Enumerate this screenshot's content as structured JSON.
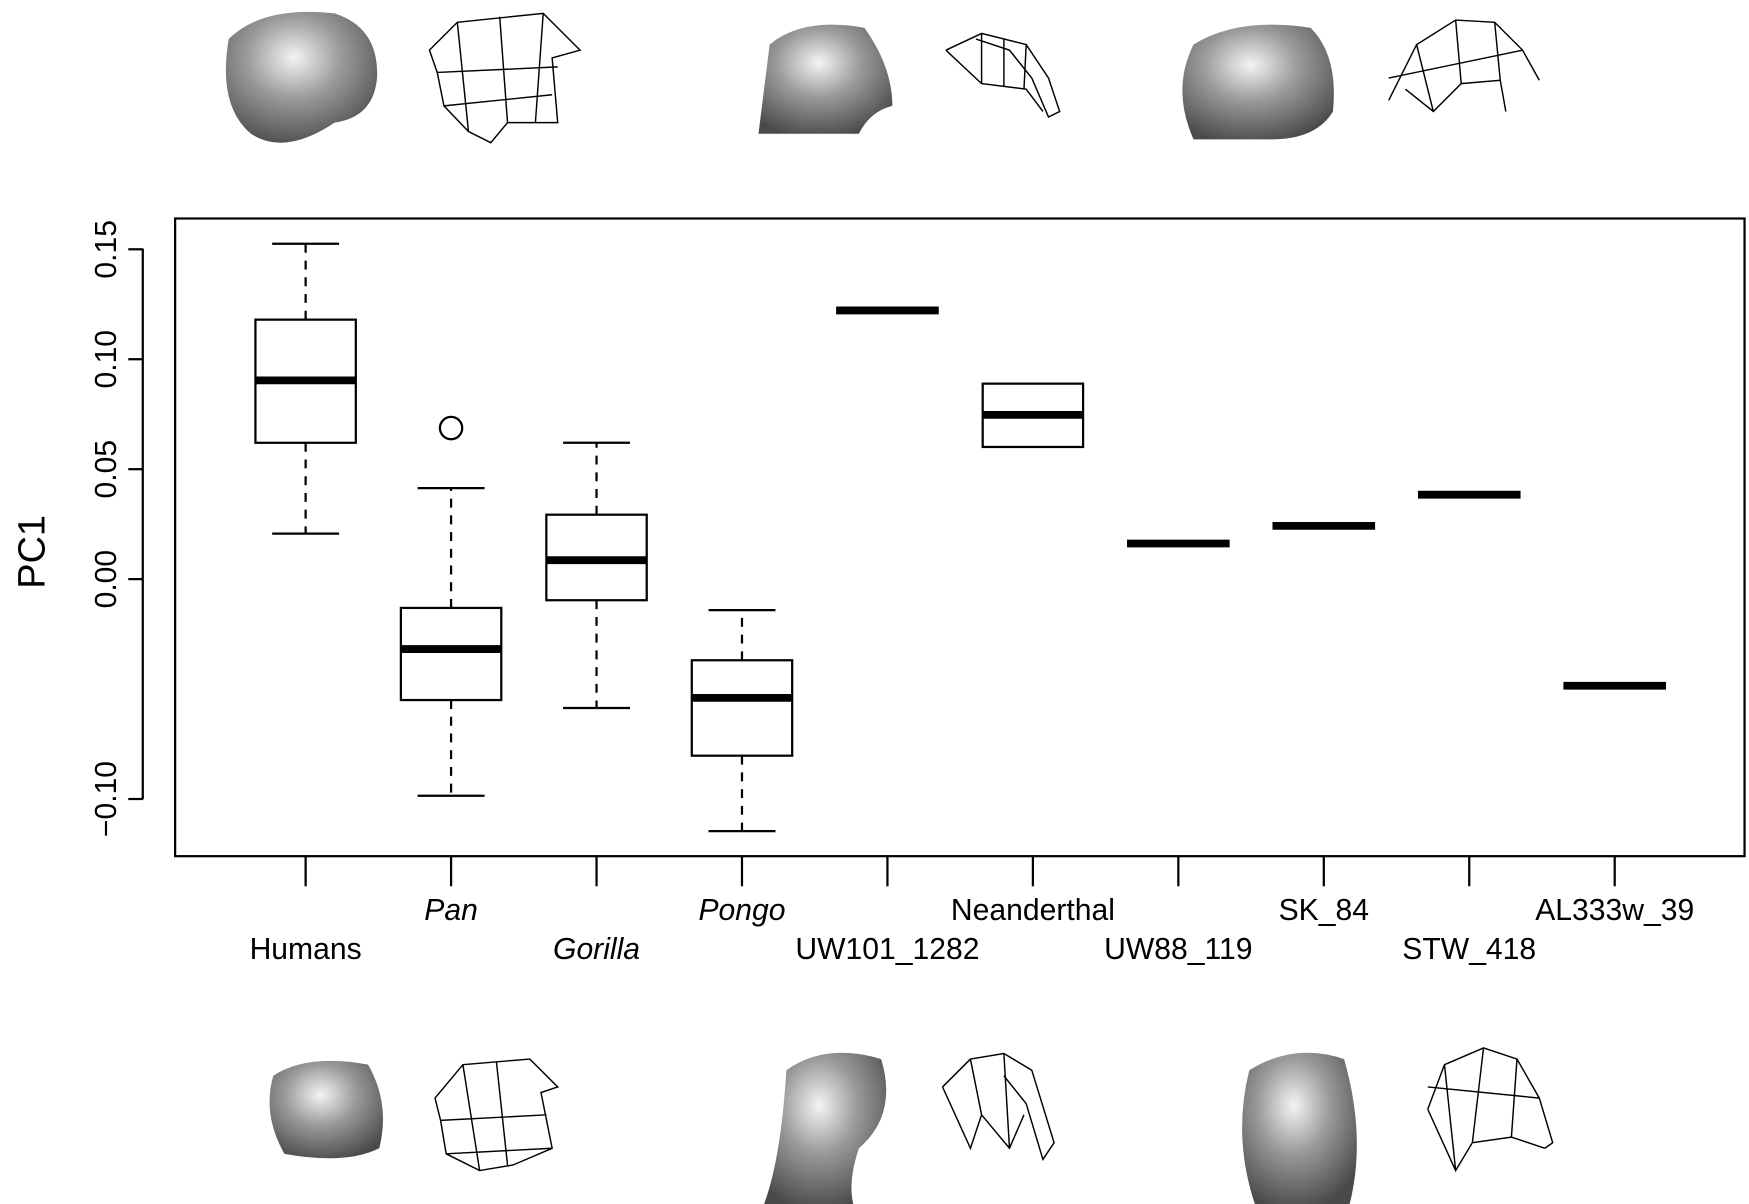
{
  "chart_data": {
    "type": "box",
    "y_label": "PC1",
    "categories": [
      "Humans",
      "Pan",
      "Gorilla",
      "Pongo",
      "UW101_1282",
      "Neanderthal",
      "UW88_119",
      "SK_84",
      "STW_418",
      "AL333w_39"
    ],
    "italic": [
      false,
      true,
      true,
      true,
      false,
      false,
      false,
      false,
      false,
      false
    ],
    "boxes": [
      {
        "whisker_low": 0.0207,
        "q1": 0.062,
        "median": 0.0904,
        "q3": 0.118,
        "whisker_high": 0.1525
      },
      {
        "whisker_low": -0.0985,
        "q1": -0.055,
        "median": -0.0318,
        "q3": -0.0131,
        "whisker_high": 0.0414,
        "outliers": [
          0.0687
        ]
      },
      {
        "whisker_low": -0.0586,
        "q1": -0.0096,
        "median": 0.0086,
        "q3": 0.0293,
        "whisker_high": 0.062
      },
      {
        "whisker_low": -0.1146,
        "q1": -0.0803,
        "median": -0.054,
        "q3": -0.0369,
        "whisker_high": -0.0141
      },
      {
        "value": 0.1222
      },
      {
        "q1": 0.0601,
        "median": 0.0747,
        "q3": 0.0889
      },
      {
        "value": 0.0162
      },
      {
        "value": 0.0242
      },
      {
        "value": 0.0384
      },
      {
        "value": -0.0485
      }
    ],
    "ylim": [
      -0.126,
      0.164
    ],
    "yticks": [
      {
        "value": -0.1,
        "label": "−0.10"
      },
      {
        "value": 0,
        "label": "0.00"
      },
      0.05,
      {
        "value": 0.1,
        "label": "0.10"
      },
      0.15
    ]
  }
}
